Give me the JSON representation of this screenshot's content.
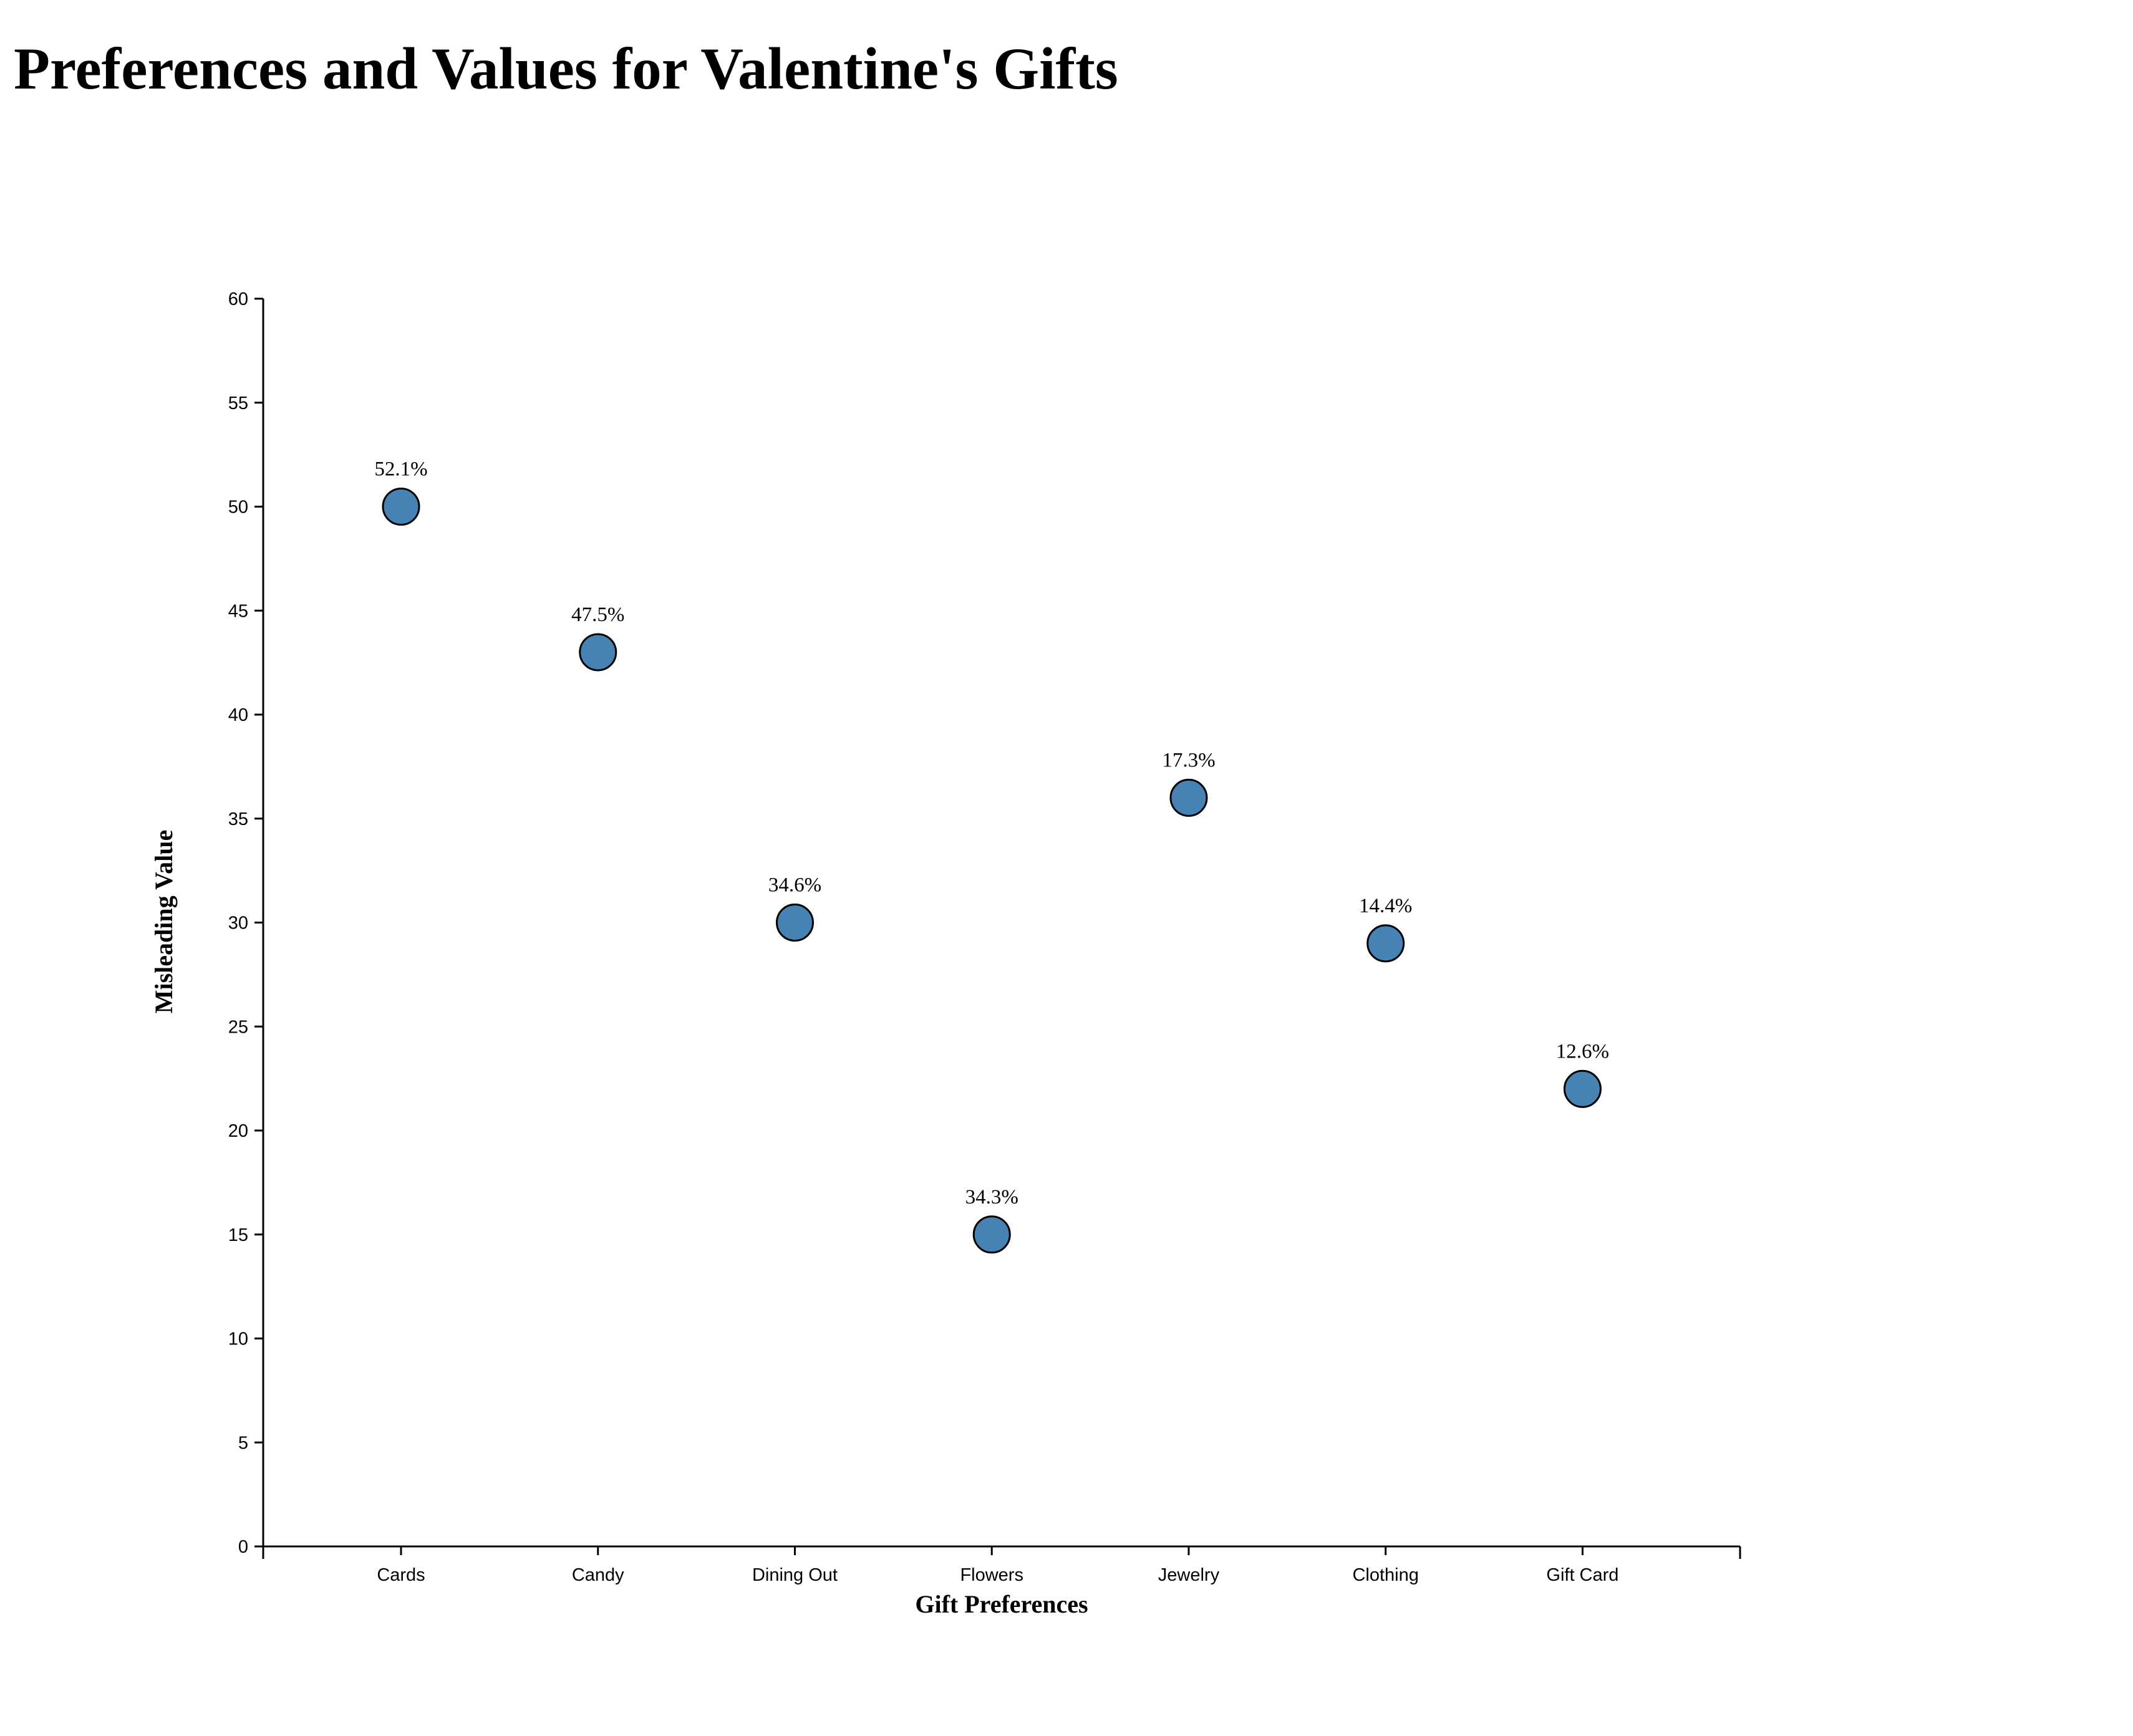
{
  "chart_data": {
    "type": "scatter",
    "title": "Preferences and Values for Valentine's Gifts",
    "xlabel": "Gift Preferences",
    "ylabel": "Misleading Value",
    "categories": [
      "Cards",
      "Candy",
      "Dining Out",
      "Flowers",
      "Jewelry",
      "Clothing",
      "Gift Card"
    ],
    "values": [
      50,
      43,
      30,
      15,
      36,
      29,
      22
    ],
    "labels": [
      "52.1%",
      "47.5%",
      "34.6%",
      "34.3%",
      "17.3%",
      "14.4%",
      "12.6%"
    ],
    "ylim": [
      0,
      60
    ],
    "yticks": [
      0,
      5,
      10,
      15,
      20,
      25,
      30,
      35,
      40,
      45,
      50,
      55,
      60
    ],
    "grid": false,
    "colors": {
      "marker_fill": "#4682b4",
      "marker_stroke": "#000000",
      "axis": "#000000"
    }
  }
}
